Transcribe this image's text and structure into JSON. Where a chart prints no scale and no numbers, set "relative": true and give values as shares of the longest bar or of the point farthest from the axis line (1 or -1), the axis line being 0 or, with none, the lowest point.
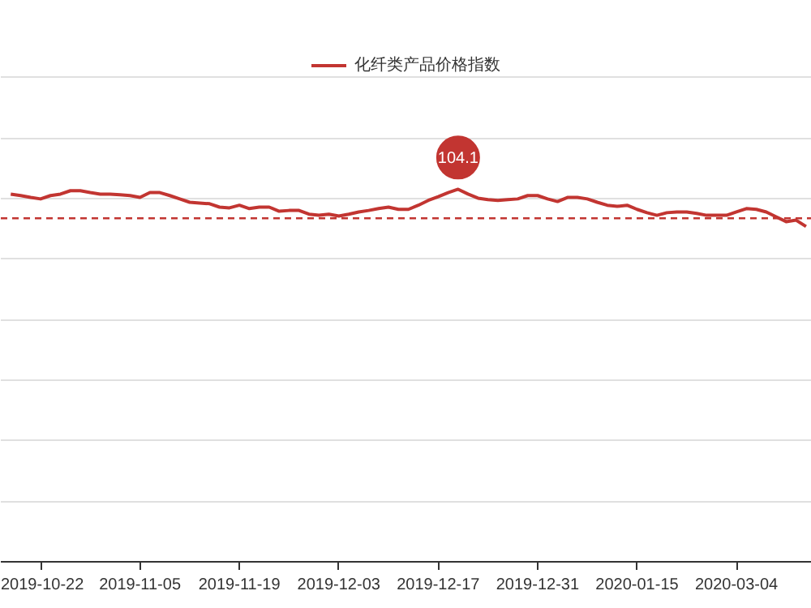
{
  "chart_data": {
    "type": "line",
    "relative": true,
    "categories": [
      null,
      null,
      null,
      "2019-10-22",
      null,
      null,
      null,
      null,
      null,
      null,
      null,
      null,
      null,
      "2019-11-05",
      null,
      null,
      null,
      null,
      null,
      null,
      null,
      null,
      null,
      "2019-11-19",
      null,
      null,
      null,
      null,
      null,
      null,
      null,
      null,
      null,
      "2019-12-03",
      null,
      null,
      null,
      null,
      null,
      null,
      null,
      null,
      null,
      "2019-12-17",
      null,
      null,
      null,
      null,
      null,
      null,
      null,
      null,
      null,
      "2019-12-31",
      null,
      null,
      null,
      null,
      null,
      null,
      null,
      null,
      null,
      "2020-01-15",
      null,
      null,
      null,
      null,
      null,
      null,
      null,
      null,
      null,
      "2020-03-04",
      null,
      null,
      null,
      null,
      null,
      null,
      null
    ],
    "series": [
      {
        "name": "化纤类产品价格指数",
        "color": "#c23531",
        "values": [
          0.987,
          0.983,
          0.978,
          0.974,
          0.983,
          0.987,
          0.996,
          0.996,
          0.991,
          0.987,
          0.987,
          0.985,
          0.983,
          0.978,
          0.991,
          0.991,
          0.983,
          0.974,
          0.965,
          0.963,
          0.961,
          0.952,
          0.95,
          0.957,
          0.948,
          0.952,
          0.952,
          0.941,
          0.943,
          0.943,
          0.933,
          0.93,
          0.933,
          0.928,
          0.933,
          0.939,
          0.943,
          0.948,
          0.952,
          0.946,
          0.946,
          0.957,
          0.97,
          0.98,
          0.991,
          1.0,
          0.987,
          0.976,
          0.972,
          0.97,
          0.972,
          0.974,
          0.983,
          0.983,
          0.974,
          0.967,
          0.978,
          0.978,
          0.974,
          0.965,
          0.957,
          0.954,
          0.957,
          0.946,
          0.937,
          0.93,
          0.937,
          0.939,
          0.939,
          0.935,
          0.93,
          0.93,
          0.93,
          0.939,
          0.948,
          0.946,
          0.939,
          0.926,
          0.913,
          0.917,
          0.9
        ]
      }
    ],
    "annotations": [
      "104.1"
    ],
    "ref_lines": [
      {
        "axis": "y",
        "value": 0.922,
        "color": "#c23531",
        "line_style": "dashed"
      }
    ],
    "grid": "y",
    "legend": "top",
    "line_style": "solid"
  }
}
